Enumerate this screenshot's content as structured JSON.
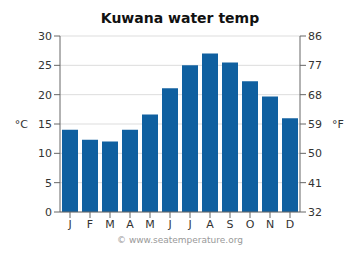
{
  "chart_data": {
    "type": "bar",
    "title": "Kuwana water temp",
    "categories": [
      "J",
      "F",
      "M",
      "A",
      "M",
      "J",
      "J",
      "A",
      "S",
      "O",
      "N",
      "D"
    ],
    "values": [
      14.0,
      12.3,
      12.0,
      14.0,
      16.6,
      21.1,
      25.0,
      27.0,
      25.5,
      22.3,
      19.7,
      16.0
    ],
    "color": "#1060a0",
    "ylabel": "°C",
    "y2label": "°F",
    "ylim": [
      0,
      30
    ],
    "yticks": [
      0,
      5,
      10,
      15,
      20,
      25,
      30
    ],
    "y2lim": [
      32,
      86
    ],
    "y2ticks": [
      32,
      41,
      50,
      59,
      68,
      77,
      86
    ],
    "grid": true,
    "annotations": [
      "© www.seatemperature.org"
    ]
  }
}
